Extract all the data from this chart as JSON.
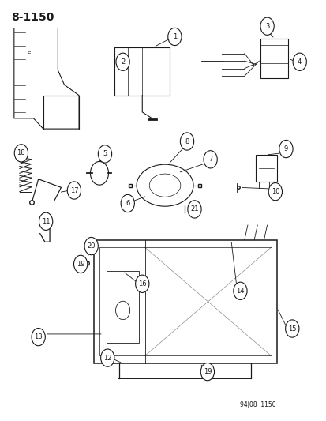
{
  "title": "8-1150",
  "subtitle": "94J08  1150",
  "background_color": "#ffffff",
  "line_color": "#1a1a1a",
  "figsize": [
    4.14,
    5.33
  ],
  "dpi": 100
}
